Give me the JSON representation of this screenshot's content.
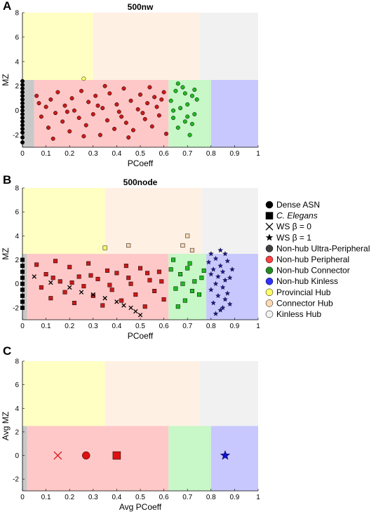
{
  "colors": {
    "provincial_hub": "#ffffc4",
    "connector_hub": "#fff0e4",
    "kinless_hub": "#f1f1f1",
    "ultra_peripheral": "#c8c8c8",
    "peripheral": "#ffc8c8",
    "connector": "#c8f7c8",
    "kinless": "#c8c8ff",
    "peripheral_marker": "#cc1a1a",
    "connector_marker": "#22bb22",
    "kinless_marker": "#1a1a99"
  },
  "legend": [
    {
      "label": "Dense ASN",
      "marker": "circle",
      "color": "#000000",
      "italic": false
    },
    {
      "label": "C. Elegans",
      "marker": "square",
      "color": "#000000",
      "italic": true
    },
    {
      "label": "WS β = 0",
      "marker": "x",
      "color": "#000000",
      "italic": false
    },
    {
      "label": "WS β = 1",
      "marker": "star",
      "color": "#000000",
      "italic": false
    },
    {
      "label": "Non-hub Ultra-Peripheral",
      "marker": "circle",
      "color": "#404040",
      "italic": false
    },
    {
      "label": "Non-hub Peripheral",
      "marker": "circle",
      "color": "#ff4040",
      "italic": false
    },
    {
      "label": "Non-hub Connector",
      "marker": "circle",
      "color": "#228b22",
      "italic": false
    },
    {
      "label": "Non-hub Kinless",
      "marker": "circle",
      "color": "#3030ff",
      "italic": false
    },
    {
      "label": "Provincial Hub",
      "marker": "circle",
      "color": "#ffff66",
      "italic": false
    },
    {
      "label": "Connector Hub",
      "marker": "circle",
      "color": "#ffd9b3",
      "italic": false
    },
    {
      "label": "Kinless Hub",
      "marker": "circle",
      "color": "#f2f2f2",
      "italic": false
    }
  ],
  "chart_data": [
    {
      "panel": "A",
      "type": "scatter",
      "title": "500nw",
      "xlabel": "PCoeff",
      "ylabel": "MZ",
      "xlim": [
        0,
        1
      ],
      "ylim": [
        -3,
        8
      ],
      "xticks": [
        "0",
        "0.1",
        "0.2",
        "0.3",
        "0.4",
        "0.5",
        "0.6",
        "0.7",
        "0.8",
        "0.9",
        "1"
      ],
      "yticks": [
        "-2",
        "0",
        "2",
        "4",
        "6",
        "8"
      ],
      "region_bounds": {
        "hub_mz": 2.5,
        "ultra_peripheral": 0.05,
        "peripheral": 0.62,
        "connector": 0.8,
        "provincial_hub": 0.3,
        "connector_hub": 0.75
      },
      "series": [
        {
          "name": "Non-hub Ultra-Peripheral",
          "marker": "circle",
          "color": "#000000",
          "points": [
            [
              0,
              -2.6
            ],
            [
              0,
              -2.2
            ],
            [
              0,
              -1.8
            ],
            [
              0,
              -1.5
            ],
            [
              0,
              -1.2
            ],
            [
              0,
              -0.9
            ],
            [
              0,
              -0.6
            ],
            [
              0,
              -0.3
            ],
            [
              0,
              0
            ],
            [
              0,
              0.3
            ],
            [
              0,
              0.6
            ],
            [
              0,
              0.9
            ],
            [
              0,
              1.2
            ],
            [
              0,
              1.5
            ],
            [
              0,
              1.8
            ],
            [
              0,
              2.1
            ],
            [
              0,
              2.4
            ]
          ]
        },
        {
          "name": "Non-hub Peripheral",
          "marker": "circle",
          "color": "#cc1a1a",
          "points": [
            [
              0.06,
              1.2
            ],
            [
              0.08,
              -0.5
            ],
            [
              0.1,
              0.3
            ],
            [
              0.11,
              -1.4
            ],
            [
              0.12,
              0.9
            ],
            [
              0.14,
              -0.2
            ],
            [
              0.15,
              1.5
            ],
            [
              0.17,
              -0.9
            ],
            [
              0.18,
              0.4
            ],
            [
              0.2,
              -1.7
            ],
            [
              0.21,
              1.0
            ],
            [
              0.22,
              0.0
            ],
            [
              0.24,
              -0.6
            ],
            [
              0.25,
              1.6
            ],
            [
              0.27,
              -1.2
            ],
            [
              0.28,
              0.7
            ],
            [
              0.3,
              -0.3
            ],
            [
              0.31,
              1.2
            ],
            [
              0.33,
              -2.0
            ],
            [
              0.34,
              0.2
            ],
            [
              0.36,
              -0.8
            ],
            [
              0.37,
              1.4
            ],
            [
              0.39,
              -1.5
            ],
            [
              0.4,
              0.5
            ],
            [
              0.41,
              -0.1
            ],
            [
              0.43,
              1.8
            ],
            [
              0.44,
              -1.0
            ],
            [
              0.46,
              0.8
            ],
            [
              0.47,
              -1.6
            ],
            [
              0.49,
              0.1
            ],
            [
              0.5,
              1.3
            ],
            [
              0.52,
              -0.7
            ],
            [
              0.53,
              0.6
            ],
            [
              0.55,
              -1.3
            ],
            [
              0.56,
              1.1
            ],
            [
              0.58,
              -0.4
            ],
            [
              0.59,
              0.9
            ],
            [
              0.61,
              -1.9
            ],
            [
              0.13,
              -2.3
            ],
            [
              0.26,
              -2.1
            ],
            [
              0.35,
              2.0
            ],
            [
              0.45,
              -2.2
            ],
            [
              0.54,
              1.9
            ],
            [
              0.07,
              0.6
            ],
            [
              0.19,
              -0.1
            ],
            [
              0.32,
              0.4
            ],
            [
              0.42,
              -0.5
            ],
            [
              0.51,
              -0.2
            ],
            [
              0.57,
              0.3
            ],
            [
              0.6,
              1.5
            ]
          ]
        },
        {
          "name": "Provincial Hub",
          "marker": "circle",
          "color": "#ffff66",
          "points": [
            [
              0.26,
              2.6
            ]
          ]
        },
        {
          "name": "Non-hub Connector",
          "marker": "circle",
          "color": "#22bb22",
          "points": [
            [
              0.63,
              0.8
            ],
            [
              0.64,
              -0.6
            ],
            [
              0.65,
              1.6
            ],
            [
              0.66,
              -1.4
            ],
            [
              0.67,
              0.2
            ],
            [
              0.68,
              1.9
            ],
            [
              0.69,
              -0.9
            ],
            [
              0.7,
              0.5
            ],
            [
              0.71,
              -2.0
            ],
            [
              0.72,
              1.2
            ],
            [
              0.73,
              -0.3
            ],
            [
              0.74,
              0.9
            ],
            [
              0.66,
              2.2
            ],
            [
              0.69,
              1.4
            ],
            [
              0.72,
              -1.1
            ],
            [
              0.64,
              0.0
            ],
            [
              0.7,
              -0.5
            ],
            [
              0.73,
              1.7
            ]
          ]
        }
      ]
    },
    {
      "panel": "B",
      "type": "scatter",
      "title": "500node",
      "xlabel": "PCoeff",
      "ylabel": "MZ",
      "xlim": [
        0,
        1
      ],
      "ylim": [
        -3,
        8
      ],
      "xticks": [
        "0",
        "0.1",
        "0.2",
        "0.3",
        "0.4",
        "0.5",
        "0.6",
        "0.7",
        "0.8",
        "0.9",
        "1"
      ],
      "yticks": [
        "-2",
        "0",
        "2",
        "4",
        "6",
        "8"
      ],
      "region_bounds": {
        "hub_mz": 2.5,
        "ultra_peripheral": 0.02,
        "peripheral": 0.62,
        "connector": 0.78,
        "provincial_hub": 0.35,
        "connector_hub": 0.76
      },
      "series": [
        {
          "name": "Non-hub Ultra-Peripheral",
          "marker": "square",
          "color": "#000000",
          "points": [
            [
              0,
              -2
            ],
            [
              0,
              -1.5
            ],
            [
              0,
              -1
            ],
            [
              0,
              -0.5
            ],
            [
              0,
              0
            ],
            [
              0,
              0.5
            ],
            [
              0,
              1
            ],
            [
              0,
              1.5
            ],
            [
              0,
              2
            ]
          ]
        },
        {
          "name": "Non-hub Peripheral",
          "marker": "square",
          "color": "#cc1a1a",
          "points": [
            [
              0.06,
              1.6
            ],
            [
              0.08,
              -0.3
            ],
            [
              0.1,
              0.8
            ],
            [
              0.12,
              -1.2
            ],
            [
              0.14,
              1.9
            ],
            [
              0.16,
              0.2
            ],
            [
              0.18,
              -0.7
            ],
            [
              0.2,
              1.4
            ],
            [
              0.22,
              -1.6
            ],
            [
              0.24,
              0.6
            ],
            [
              0.26,
              -0.2
            ],
            [
              0.28,
              1.7
            ],
            [
              0.3,
              -1.0
            ],
            [
              0.32,
              0.4
            ],
            [
              0.34,
              -1.8
            ],
            [
              0.36,
              1.1
            ],
            [
              0.38,
              -0.5
            ],
            [
              0.4,
              0.9
            ],
            [
              0.42,
              -1.4
            ],
            [
              0.44,
              1.5
            ],
            [
              0.46,
              0.0
            ],
            [
              0.48,
              -0.9
            ],
            [
              0.5,
              1.3
            ],
            [
              0.52,
              -1.9
            ],
            [
              0.54,
              0.3
            ],
            [
              0.56,
              -0.6
            ],
            [
              0.58,
              1.0
            ],
            [
              0.6,
              -1.3
            ],
            [
              0.13,
              0.5
            ],
            [
              0.21,
              0.1
            ],
            [
              0.29,
              0.7
            ],
            [
              0.37,
              -0.1
            ],
            [
              0.45,
              0.5
            ],
            [
              0.53,
              0.9
            ],
            [
              0.59,
              0.2
            ]
          ]
        },
        {
          "name": "WS β = 0",
          "marker": "x",
          "color": "#000000",
          "points": [
            [
              0.05,
              0.6
            ],
            [
              0.12,
              0.1
            ],
            [
              0.2,
              -0.3
            ],
            [
              0.25,
              -0.7
            ],
            [
              0.3,
              -0.9
            ],
            [
              0.35,
              -1.2
            ],
            [
              0.4,
              -1.5
            ],
            [
              0.43,
              -1.8
            ],
            [
              0.46,
              -2.0
            ],
            [
              0.48,
              -2.3
            ],
            [
              0.5,
              -2.6
            ]
          ]
        },
        {
          "name": "Provincial Hub",
          "marker": "square",
          "color": "#ffff66",
          "points": [
            [
              0.35,
              3.0
            ]
          ]
        },
        {
          "name": "Connector Hub",
          "marker": "square",
          "color": "#ffd9b3",
          "points": [
            [
              0.45,
              3.2
            ],
            [
              0.68,
              3.2
            ],
            [
              0.7,
              4.0
            ],
            [
              0.72,
              2.8
            ]
          ]
        },
        {
          "name": "Non-hub Connector",
          "marker": "square",
          "color": "#22bb22",
          "points": [
            [
              0.63,
              1.2
            ],
            [
              0.65,
              -0.4
            ],
            [
              0.67,
              0.8
            ],
            [
              0.69,
              -1.4
            ],
            [
              0.71,
              1.7
            ],
            [
              0.73,
              0.2
            ],
            [
              0.75,
              -0.9
            ],
            [
              0.77,
              1.1
            ],
            [
              0.64,
              2.0
            ],
            [
              0.68,
              0.0
            ],
            [
              0.72,
              -0.6
            ],
            [
              0.76,
              0.5
            ],
            [
              0.66,
              -1.9
            ],
            [
              0.7,
              1.3
            ]
          ]
        },
        {
          "name": "WS β = 1",
          "marker": "star",
          "color": "#1a1a99",
          "points": [
            [
              0.79,
              1.8
            ],
            [
              0.8,
              -0.5
            ],
            [
              0.8,
              0.8
            ],
            [
              0.81,
              -1.6
            ],
            [
              0.81,
              1.2
            ],
            [
              0.82,
              0.0
            ],
            [
              0.82,
              2.1
            ],
            [
              0.83,
              -1.0
            ],
            [
              0.83,
              0.6
            ],
            [
              0.84,
              -2.2
            ],
            [
              0.84,
              1.5
            ],
            [
              0.85,
              -0.3
            ],
            [
              0.85,
              1.0
            ],
            [
              0.86,
              -1.3
            ],
            [
              0.86,
              0.3
            ],
            [
              0.87,
              1.9
            ],
            [
              0.87,
              -0.8
            ],
            [
              0.88,
              0.5
            ],
            [
              0.88,
              -1.7
            ],
            [
              0.89,
              1.2
            ],
            [
              0.8,
              2.5
            ],
            [
              0.84,
              2.8
            ],
            [
              0.86,
              2.5
            ],
            [
              0.82,
              -2.5
            ],
            [
              0.85,
              -2.0
            ]
          ]
        }
      ]
    },
    {
      "panel": "C",
      "type": "scatter",
      "title": "",
      "xlabel": "Avg PCoeff",
      "ylabel": "Avg MZ",
      "xlim": [
        0,
        1
      ],
      "ylim": [
        -3,
        8
      ],
      "xticks": [
        "0",
        "0.1",
        "0.2",
        "0.3",
        "0.4",
        "0.5",
        "0.6",
        "0.7",
        "0.8",
        "0.9",
        "1"
      ],
      "yticks": [
        "-2",
        "0",
        "2",
        "4",
        "6",
        "8"
      ],
      "region_bounds": {
        "hub_mz": 2.5,
        "ultra_peripheral": 0.02,
        "peripheral": 0.62,
        "connector": 0.8,
        "provincial_hub": 0.35,
        "connector_hub": 0.75
      },
      "series": [
        {
          "name": "WS β = 0",
          "marker": "x",
          "color": "#dd1111",
          "points": [
            [
              0.15,
              0
            ]
          ]
        },
        {
          "name": "Dense ASN",
          "marker": "circle",
          "color": "#dd1111",
          "points": [
            [
              0.27,
              0
            ]
          ]
        },
        {
          "name": "C. Elegans",
          "marker": "square",
          "color": "#dd1111",
          "points": [
            [
              0.4,
              0
            ]
          ]
        },
        {
          "name": "WS β = 1",
          "marker": "star",
          "color": "#1111cc",
          "points": [
            [
              0.86,
              0
            ]
          ]
        }
      ]
    }
  ]
}
